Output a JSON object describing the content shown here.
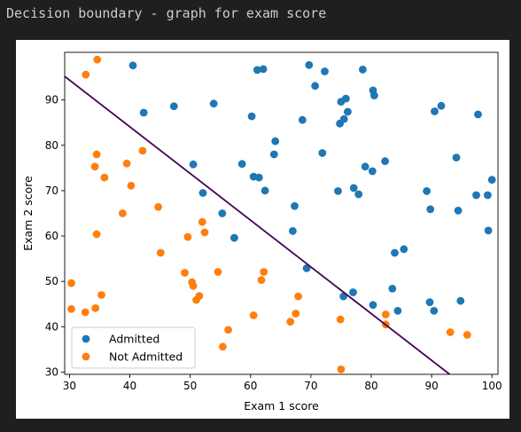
{
  "page": {
    "heading": "Decision boundary - graph for exam score"
  },
  "chart_data": {
    "type": "scatter",
    "title": "",
    "xlabel": "Exam 1 score",
    "ylabel": "Exam 2 score",
    "xlim": [
      29.2,
      101
    ],
    "ylim": [
      29.5,
      100.5
    ],
    "xticks": [
      30,
      40,
      50,
      60,
      70,
      80,
      90,
      100
    ],
    "yticks": [
      30,
      40,
      50,
      60,
      70,
      80,
      90
    ],
    "grid": false,
    "legend_position": "lower-left",
    "series": [
      {
        "name": "Admitted",
        "color": "#1f77b4",
        "points": [
          [
            40.5,
            97.6
          ],
          [
            42.3,
            87.2
          ],
          [
            47.3,
            88.6
          ],
          [
            53.9,
            89.2
          ],
          [
            60.2,
            86.4
          ],
          [
            61.1,
            96.6
          ],
          [
            62.1,
            96.8
          ],
          [
            69.7,
            97.7
          ],
          [
            70.7,
            93.1
          ],
          [
            72.3,
            96.3
          ],
          [
            75.0,
            89.6
          ],
          [
            75.8,
            90.3
          ],
          [
            76.1,
            87.4
          ],
          [
            75.5,
            85.8
          ],
          [
            74.8,
            84.8
          ],
          [
            78.6,
            96.7
          ],
          [
            80.3,
            92.1
          ],
          [
            80.5,
            91.0
          ],
          [
            68.6,
            85.6
          ],
          [
            64.1,
            80.9
          ],
          [
            63.9,
            78.0
          ],
          [
            50.5,
            75.8
          ],
          [
            58.6,
            75.9
          ],
          [
            60.5,
            73.1
          ],
          [
            61.4,
            72.9
          ],
          [
            52.1,
            69.5
          ],
          [
            62.4,
            70.0
          ],
          [
            71.9,
            78.3
          ],
          [
            79.0,
            75.3
          ],
          [
            80.2,
            74.3
          ],
          [
            82.3,
            76.5
          ],
          [
            74.5,
            69.9
          ],
          [
            77.1,
            70.6
          ],
          [
            77.9,
            69.2
          ],
          [
            89.2,
            69.9
          ],
          [
            90.5,
            87.5
          ],
          [
            91.6,
            88.7
          ],
          [
            97.7,
            86.8
          ],
          [
            94.1,
            77.3
          ],
          [
            100.0,
            72.4
          ],
          [
            97.4,
            69.0
          ],
          [
            99.3,
            69.0
          ],
          [
            89.8,
            65.9
          ],
          [
            94.4,
            65.6
          ],
          [
            99.4,
            61.2
          ],
          [
            67.3,
            66.6
          ],
          [
            55.3,
            65.0
          ],
          [
            57.3,
            59.6
          ],
          [
            67.0,
            61.1
          ],
          [
            69.3,
            52.9
          ],
          [
            83.5,
            48.4
          ],
          [
            85.4,
            57.1
          ],
          [
            83.9,
            56.3
          ],
          [
            75.4,
            46.7
          ],
          [
            77.0,
            47.6
          ],
          [
            80.3,
            44.8
          ],
          [
            84.4,
            43.5
          ],
          [
            89.7,
            45.4
          ],
          [
            90.4,
            43.5
          ],
          [
            94.8,
            45.7
          ]
        ]
      },
      {
        "name": "Not Admitted",
        "color": "#ff7f0e",
        "points": [
          [
            34.6,
            98.9
          ],
          [
            32.7,
            95.6
          ],
          [
            34.5,
            78.0
          ],
          [
            34.2,
            75.3
          ],
          [
            35.8,
            72.9
          ],
          [
            39.5,
            76.0
          ],
          [
            42.1,
            78.8
          ],
          [
            40.2,
            71.1
          ],
          [
            38.8,
            65.0
          ],
          [
            44.7,
            66.4
          ],
          [
            34.5,
            60.4
          ],
          [
            45.1,
            56.3
          ],
          [
            49.6,
            59.8
          ],
          [
            52.4,
            60.8
          ],
          [
            52.0,
            63.1
          ],
          [
            30.3,
            49.6
          ],
          [
            49.1,
            51.9
          ],
          [
            54.6,
            52.1
          ],
          [
            50.3,
            49.8
          ],
          [
            50.5,
            49.0
          ],
          [
            61.8,
            50.3
          ],
          [
            62.2,
            52.1
          ],
          [
            51.5,
            46.8
          ],
          [
            51.0,
            45.9
          ],
          [
            35.3,
            47.0
          ],
          [
            30.3,
            43.9
          ],
          [
            32.6,
            43.2
          ],
          [
            34.3,
            44.1
          ],
          [
            60.5,
            42.5
          ],
          [
            56.3,
            39.3
          ],
          [
            55.4,
            35.6
          ],
          [
            67.9,
            46.7
          ],
          [
            67.5,
            42.9
          ],
          [
            66.6,
            41.1
          ],
          [
            74.9,
            41.6
          ],
          [
            82.4,
            42.7
          ],
          [
            82.4,
            40.5
          ],
          [
            75.0,
            30.6
          ],
          [
            93.1,
            38.8
          ],
          [
            95.9,
            38.2
          ]
        ]
      }
    ],
    "decision_boundary": {
      "color": "#440154",
      "points": [
        [
          29.2,
          95.2
        ],
        [
          93.0,
          29.5
        ]
      ]
    }
  }
}
